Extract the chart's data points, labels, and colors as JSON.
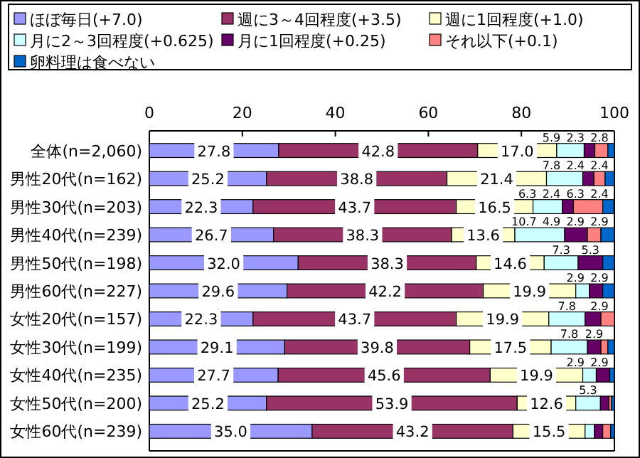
{
  "chart_data": {
    "type": "bar",
    "orientation": "horizontal",
    "stacked": true,
    "legend": "top",
    "grid": false,
    "categories": [
      "全体(n=2,060)",
      "男性20代(n=162)",
      "男性30代(n=203)",
      "男性40代(n=239)",
      "男性50代(n=198)",
      "男性60代(n=227)",
      "女性20代(n=157)",
      "女性30代(n=199)",
      "女性40代(n=235)",
      "女性50代(n=200)",
      "女性60代(n=239)"
    ],
    "xlim": [
      0,
      100
    ],
    "xticks": [
      0,
      20,
      40,
      60,
      80,
      100
    ],
    "series": [
      {
        "name": "ほぼ毎日(+7.0)",
        "color": "#9999ff",
        "values": [
          27.8,
          25.2,
          22.3,
          26.7,
          32.0,
          29.6,
          22.3,
          29.1,
          27.7,
          25.2,
          35.0
        ],
        "value_labels": [
          "27.8",
          "25.2",
          "22.3",
          "26.7",
          "32.0",
          "29.6",
          "22.3",
          "29.1",
          "27.7",
          "25.2",
          "35.0"
        ]
      },
      {
        "name": "週に3～4回程度(+3.5)",
        "color": "#993366",
        "values": [
          42.8,
          38.8,
          43.7,
          38.3,
          38.3,
          42.2,
          43.7,
          39.8,
          45.6,
          53.9,
          43.2
        ],
        "value_labels": [
          "42.8",
          "38.8",
          "43.7",
          "38.3",
          "38.3",
          "42.2",
          "43.7",
          "39.8",
          "45.6",
          "53.9",
          "43.2"
        ]
      },
      {
        "name": "週に1回程度(+1.0)",
        "color": "#ffffcc",
        "values": [
          17.0,
          21.4,
          16.5,
          13.6,
          14.6,
          19.9,
          19.9,
          17.5,
          19.9,
          12.6,
          15.5
        ],
        "value_labels": [
          "17.0",
          "21.4",
          "16.5",
          "13.6",
          "14.6",
          "19.9",
          "19.9",
          "17.5",
          "19.9",
          "12.6",
          "15.5"
        ]
      },
      {
        "name": "月に2～3回程度(+0.625)",
        "color": "#ccffff",
        "values": [
          5.9,
          7.8,
          6.3,
          10.7,
          7.3,
          2.9,
          7.8,
          7.8,
          2.9,
          5.3,
          2.0
        ],
        "value_labels": [
          "5.9",
          "7.8",
          "6.3",
          "10.7",
          "7.3",
          "2.9",
          "7.8",
          "7.8",
          "2.9",
          "5.3",
          null
        ]
      },
      {
        "name": "月に1回程度(+0.25)",
        "color": "#660066",
        "values": [
          2.3,
          2.4,
          2.4,
          4.9,
          5.3,
          2.9,
          3.4,
          2.9,
          2.9,
          1.8,
          1.8
        ],
        "value_labels": [
          "2.3",
          "2.4",
          "2.4",
          "4.9",
          "5.3",
          "2.9",
          null,
          "2.9",
          "2.9",
          null,
          null
        ]
      },
      {
        "name": "それ以下(+0.1)",
        "color": "#ff8080",
        "values": [
          2.8,
          2.4,
          6.3,
          2.9,
          null,
          null,
          2.9,
          1.5,
          null,
          0.6,
          1.7
        ],
        "value_labels": [
          "2.8",
          "2.4",
          "6.3",
          "2.9",
          null,
          null,
          "2.9",
          null,
          null,
          null,
          null
        ]
      },
      {
        "name": "卵料理は食べない",
        "color": "#0066cc",
        "values": [
          1.4,
          2.0,
          2.4,
          2.9,
          2.5,
          2.5,
          null,
          1.4,
          1.0,
          0.6,
          0.8
        ],
        "value_labels": [
          null,
          null,
          "2.4",
          "2.9",
          null,
          null,
          null,
          null,
          null,
          null,
          null
        ]
      }
    ]
  }
}
